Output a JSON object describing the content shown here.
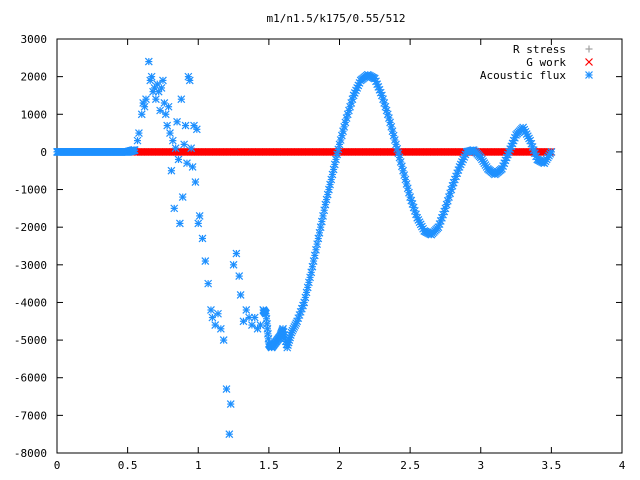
{
  "chart_data": {
    "type": "scatter",
    "title": "m1/n1.5/k175/0.55/512",
    "xlabel": "",
    "ylabel": "",
    "xlim": [
      0,
      4
    ],
    "ylim": [
      -8000,
      3000
    ],
    "xticks": [
      "0",
      "0.5",
      "1",
      "1.5",
      "2",
      "2.5",
      "3",
      "3.5",
      "4"
    ],
    "yticks": [
      "3000",
      "2000",
      "1000",
      "0",
      "-1000",
      "-2000",
      "-3000",
      "-4000",
      "-5000",
      "-6000",
      "-7000",
      "-8000"
    ],
    "grid": false,
    "legend_position": "top-right",
    "series": [
      {
        "name": "R stress",
        "marker": "plus",
        "color": "#a0a0a0",
        "x_range": [
          0.55,
          3.5
        ],
        "value": 0
      },
      {
        "name": "G work",
        "marker": "cross",
        "color": "#ff0000",
        "x_range": [
          0.55,
          3.5
        ],
        "value": 0
      },
      {
        "name": "Acoustic flux",
        "marker": "star",
        "color": "#1e90ff",
        "points": [
          [
            0.0,
            0
          ],
          [
            0.1,
            0
          ],
          [
            0.2,
            0
          ],
          [
            0.3,
            0
          ],
          [
            0.4,
            0
          ],
          [
            0.5,
            0
          ],
          [
            0.55,
            50
          ],
          [
            0.57,
            300
          ],
          [
            0.58,
            500
          ],
          [
            0.6,
            1000
          ],
          [
            0.61,
            1300
          ],
          [
            0.62,
            1200
          ],
          [
            0.63,
            1400
          ],
          [
            0.65,
            2400
          ],
          [
            0.66,
            1900
          ],
          [
            0.67,
            2000
          ],
          [
            0.68,
            1600
          ],
          [
            0.69,
            1700
          ],
          [
            0.7,
            1400
          ],
          [
            0.71,
            1800
          ],
          [
            0.72,
            1600
          ],
          [
            0.73,
            1100
          ],
          [
            0.74,
            1700
          ],
          [
            0.75,
            1900
          ],
          [
            0.76,
            1300
          ],
          [
            0.77,
            1000
          ],
          [
            0.78,
            700
          ],
          [
            0.79,
            1200
          ],
          [
            0.8,
            500
          ],
          [
            0.81,
            -500
          ],
          [
            0.82,
            300
          ],
          [
            0.83,
            -1500
          ],
          [
            0.84,
            100
          ],
          [
            0.85,
            800
          ],
          [
            0.86,
            -200
          ],
          [
            0.87,
            -1900
          ],
          [
            0.88,
            1400
          ],
          [
            0.89,
            -1200
          ],
          [
            0.9,
            200
          ],
          [
            0.91,
            700
          ],
          [
            0.92,
            -300
          ],
          [
            0.93,
            2000
          ],
          [
            0.94,
            1900
          ],
          [
            0.95,
            100
          ],
          [
            0.96,
            -400
          ],
          [
            0.97,
            700
          ],
          [
            0.98,
            -800
          ],
          [
            0.99,
            600
          ],
          [
            1.0,
            -1900
          ],
          [
            1.01,
            -1700
          ],
          [
            1.03,
            -2300
          ],
          [
            1.05,
            -2900
          ],
          [
            1.07,
            -3500
          ],
          [
            1.09,
            -4200
          ],
          [
            1.1,
            -4400
          ],
          [
            1.12,
            -4600
          ],
          [
            1.14,
            -4300
          ],
          [
            1.16,
            -4700
          ],
          [
            1.18,
            -5000
          ],
          [
            1.2,
            -6300
          ],
          [
            1.22,
            -7500
          ],
          [
            1.23,
            -6700
          ],
          [
            1.25,
            -3000
          ],
          [
            1.27,
            -2700
          ],
          [
            1.29,
            -3300
          ],
          [
            1.3,
            -3800
          ],
          [
            1.32,
            -4500
          ],
          [
            1.34,
            -4200
          ],
          [
            1.36,
            -4400
          ],
          [
            1.38,
            -4600
          ],
          [
            1.4,
            -4400
          ],
          [
            1.42,
            -4700
          ],
          [
            1.44,
            -4600
          ],
          [
            1.46,
            -4200
          ],
          [
            1.48,
            -4300
          ],
          [
            1.5,
            -5100
          ],
          [
            1.52,
            -5200
          ],
          [
            1.55,
            -5050
          ],
          [
            1.58,
            -4900
          ],
          [
            1.6,
            -4700
          ],
          [
            1.63,
            -5200
          ],
          [
            1.66,
            -4800
          ],
          [
            1.7,
            -4500
          ],
          [
            1.75,
            -4000
          ],
          [
            1.8,
            -3200
          ],
          [
            1.85,
            -2300
          ],
          [
            1.9,
            -1400
          ],
          [
            1.95,
            -600
          ],
          [
            2.0,
            200
          ],
          [
            2.05,
            900
          ],
          [
            2.1,
            1500
          ],
          [
            2.15,
            1900
          ],
          [
            2.2,
            2050
          ],
          [
            2.25,
            1950
          ],
          [
            2.3,
            1500
          ],
          [
            2.35,
            900
          ],
          [
            2.4,
            200
          ],
          [
            2.45,
            -500
          ],
          [
            2.5,
            -1200
          ],
          [
            2.55,
            -1750
          ],
          [
            2.6,
            -2100
          ],
          [
            2.65,
            -2200
          ],
          [
            2.7,
            -2000
          ],
          [
            2.75,
            -1500
          ],
          [
            2.8,
            -900
          ],
          [
            2.85,
            -400
          ],
          [
            2.9,
            0
          ],
          [
            2.95,
            50
          ],
          [
            3.0,
            -150
          ],
          [
            3.05,
            -450
          ],
          [
            3.1,
            -600
          ],
          [
            3.15,
            -450
          ],
          [
            3.2,
            0
          ],
          [
            3.25,
            450
          ],
          [
            3.3,
            650
          ],
          [
            3.35,
            300
          ],
          [
            3.4,
            -200
          ],
          [
            3.45,
            -300
          ],
          [
            3.5,
            0
          ]
        ]
      }
    ]
  }
}
